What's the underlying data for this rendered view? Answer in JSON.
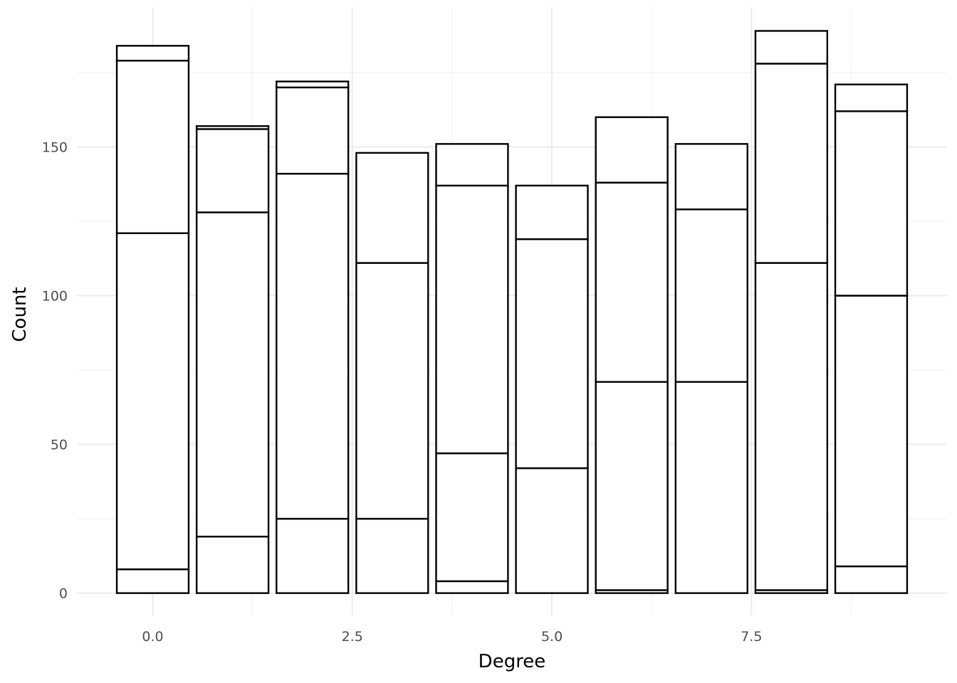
{
  "chart_data": {
    "type": "bar",
    "stacked": true,
    "xlabel": "Degree",
    "ylabel": "Count",
    "xlim": [
      -0.95,
      9.95
    ],
    "ylim": [
      -7.5,
      197
    ],
    "x_ticks": [
      0.0,
      2.5,
      5.0,
      7.5
    ],
    "x_tick_labels": [
      "0.0",
      "2.5",
      "5.0",
      "7.5"
    ],
    "y_ticks": [
      0,
      50,
      100,
      150
    ],
    "y_tick_labels": [
      "0",
      "50",
      "100",
      "150"
    ],
    "grid": true,
    "fill_color": "#ffffff",
    "outline_color": "#000000",
    "bar_width": 0.9,
    "x": [
      0,
      1,
      2,
      3,
      4,
      5,
      6,
      7,
      8,
      9
    ],
    "stacks": [
      [
        8,
        121,
        179,
        184
      ],
      [
        19,
        128,
        156,
        157
      ],
      [
        25,
        141,
        170,
        172
      ],
      [
        25,
        111,
        148
      ],
      [
        4,
        47,
        137,
        151
      ],
      [
        42,
        119,
        137
      ],
      [
        1,
        71,
        138,
        160
      ],
      [
        71,
        129,
        151
      ],
      [
        1,
        111,
        178,
        189
      ],
      [
        9,
        100,
        162,
        171
      ]
    ],
    "totals": [
      184,
      157,
      172,
      148,
      151,
      137,
      160,
      151,
      189,
      171
    ]
  }
}
